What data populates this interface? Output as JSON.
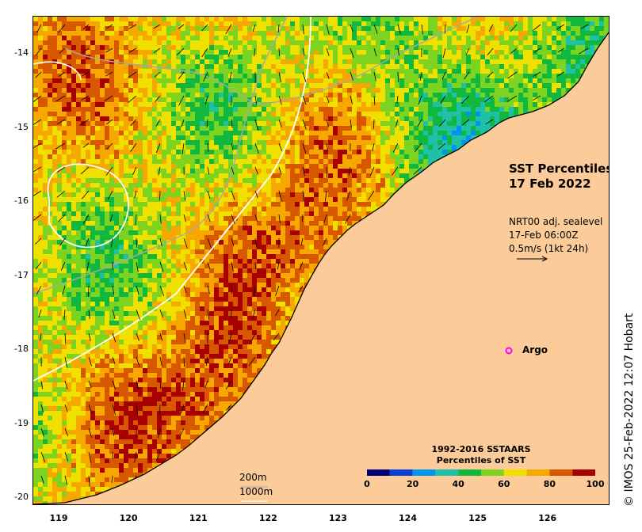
{
  "map": {
    "title_line1": "SST Percentiles",
    "title_line2": "17 Feb 2022",
    "current_info": {
      "line1": "NRT00 adj. sealevel",
      "line2": "17-Feb 06:00Z",
      "line3": "0.5m/s (1kt 24h)"
    },
    "argo_label": "Argo",
    "argo_marker": "o",
    "depth_contours": [
      "200m",
      "1000m"
    ],
    "credit": "© IMOS 25-Feb-2022 12:07 Hobart",
    "lat_ticks": [
      "-14",
      "-15",
      "-16",
      "-17",
      "-18",
      "-19",
      "-20"
    ],
    "lon_ticks": [
      "119",
      "120",
      "121",
      "122",
      "123",
      "124",
      "125",
      "126"
    ],
    "argo_position": {
      "lon": 125.25,
      "lat": -18.0
    }
  },
  "legend": {
    "title_line1": "1992-2016 SSTAARS",
    "title_line2": "Percentiles of SST",
    "tick_labels": [
      "0",
      "20",
      "40",
      "60",
      "80",
      "100"
    ],
    "colors": [
      "#00007a",
      "#0a3fd8",
      "#0096f0",
      "#20c0a8",
      "#10b840",
      "#7cd420",
      "#f0e000",
      "#f6a800",
      "#d85800",
      "#a80000"
    ]
  },
  "colors": {
    "land": "#fbcb99",
    "coast": "#000000",
    "arrow": "#000000",
    "argo": "#ff00ff",
    "contour_200m": "#a8a8a8",
    "contour_1000m": "#ffffff"
  }
}
